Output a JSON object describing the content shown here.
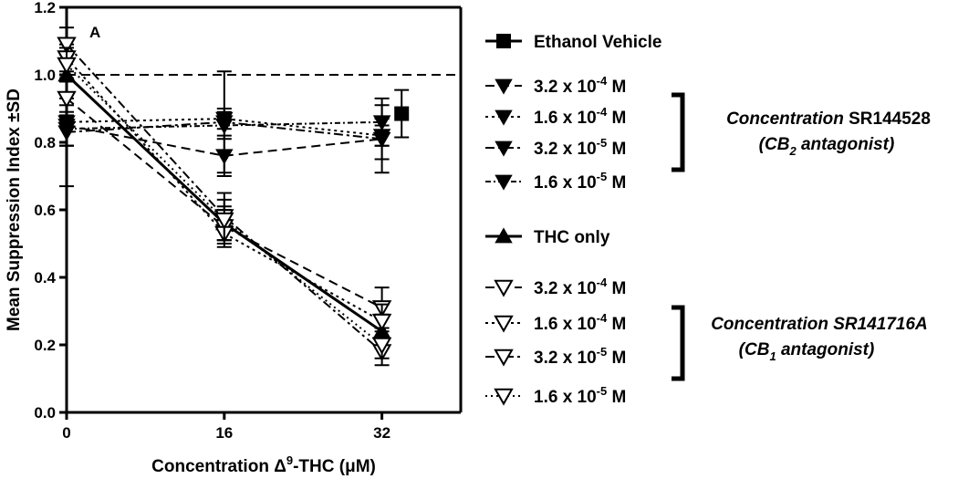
{
  "chart_data": {
    "type": "line",
    "panel_label": "A",
    "xlabel_prefix": "Concentration ",
    "xlabel_delta": "Δ",
    "xlabel_sup": "9",
    "xlabel_mid": "-THC (",
    "xlabel_mu": "μ",
    "xlabel_end": "M)",
    "ylabel": "Mean Suppression Index ±SD",
    "x_ticks": [
      "0",
      "16",
      "32"
    ],
    "x_tick_values": [
      0,
      16,
      32
    ],
    "xlim": [
      0,
      40
    ],
    "y_ticks": [
      "0.0",
      "0.2",
      "0.4",
      "0.6",
      "0.8",
      "1.0",
      "1.2"
    ],
    "y_tick_values": [
      0,
      0.2,
      0.4,
      0.6,
      0.8,
      1.0,
      1.2
    ],
    "ylim": [
      0,
      1.2
    ],
    "reference_line": 1.0,
    "vehicle": {
      "name": "Ethanol Vehicle",
      "x": 34,
      "y": 0.885,
      "sd": 0.07
    },
    "series": [
      {
        "name": "3.2 x 10-4 M",
        "group": "cb2",
        "x": [
          0,
          16,
          32
        ],
        "y": [
          0.85,
          0.76,
          0.81
        ],
        "sd": [
          0.06,
          0.06,
          0.1
        ]
      },
      {
        "name": "1.6 x 10-4 M",
        "group": "cb2",
        "x": [
          0,
          16,
          32
        ],
        "y": [
          0.86,
          0.87,
          0.82
        ],
        "sd": [
          0.07,
          0.03,
          0.03
        ]
      },
      {
        "name": "3.2 x 10-5 M",
        "group": "cb2",
        "x": [
          0,
          16,
          32
        ],
        "y": [
          0.83,
          0.86,
          0.81
        ],
        "sd": [
          0.16,
          0.15,
          0.06
        ]
      },
      {
        "name": "1.6 x 10-5 M",
        "group": "cb2",
        "x": [
          0,
          16,
          32
        ],
        "y": [
          0.84,
          0.85,
          0.86
        ],
        "sd": [
          0.05,
          0.04,
          0.07
        ]
      },
      {
        "name": "THC only",
        "group": "thc",
        "x": [
          0,
          16,
          32
        ],
        "y": [
          1.0,
          0.56,
          0.24
        ],
        "sd": [
          0.06,
          0.05,
          0.05
        ]
      },
      {
        "name": "3.2 x 10-4 M",
        "group": "cb1",
        "x": [
          0,
          16,
          32
        ],
        "y": [
          0.93,
          0.55,
          0.31
        ],
        "sd": [
          0.05,
          0.05,
          0.06
        ]
      },
      {
        "name": "1.6 x 10-4 M",
        "group": "cb1",
        "x": [
          0,
          16,
          32
        ],
        "y": [
          1.05,
          0.53,
          0.27
        ],
        "sd": [
          0.04,
          0.04,
          0.05
        ]
      },
      {
        "name": "3.2 x 10-5 M",
        "group": "cb1",
        "x": [
          0,
          16,
          32
        ],
        "y": [
          1.09,
          0.58,
          0.18
        ],
        "sd": [
          0.05,
          0.07,
          0.04
        ]
      },
      {
        "name": "1.6 x 10-5 M",
        "group": "cb1",
        "x": [
          0,
          16,
          32
        ],
        "y": [
          1.03,
          0.57,
          0.2
        ],
        "sd": [
          0.05,
          0.06,
          0.04
        ]
      }
    ],
    "legend": {
      "vehicle": "Ethanol Vehicle",
      "thc": "THC only",
      "conc_items": [
        {
          "base": "3.2 x 10",
          "exp": "-4",
          "unit": " M"
        },
        {
          "base": "1.6 x 10",
          "exp": "-4",
          "unit": " M"
        },
        {
          "base": "3.2 x 10",
          "exp": "-5",
          "unit": " M"
        },
        {
          "base": "1.6 x 10",
          "exp": "-5",
          "unit": " M"
        }
      ],
      "cb2_title_italic": "Concentration",
      "cb2_title_rest": " SR144528",
      "cb2_sub_pre": "(CB",
      "cb2_sub_num": "2",
      "cb2_sub_post": " antagonist)",
      "cb1_title": "Concentration SR141716A",
      "cb1_sub_pre": "(CB",
      "cb1_sub_num": "1",
      "cb1_sub_post": " antagonist)"
    }
  }
}
